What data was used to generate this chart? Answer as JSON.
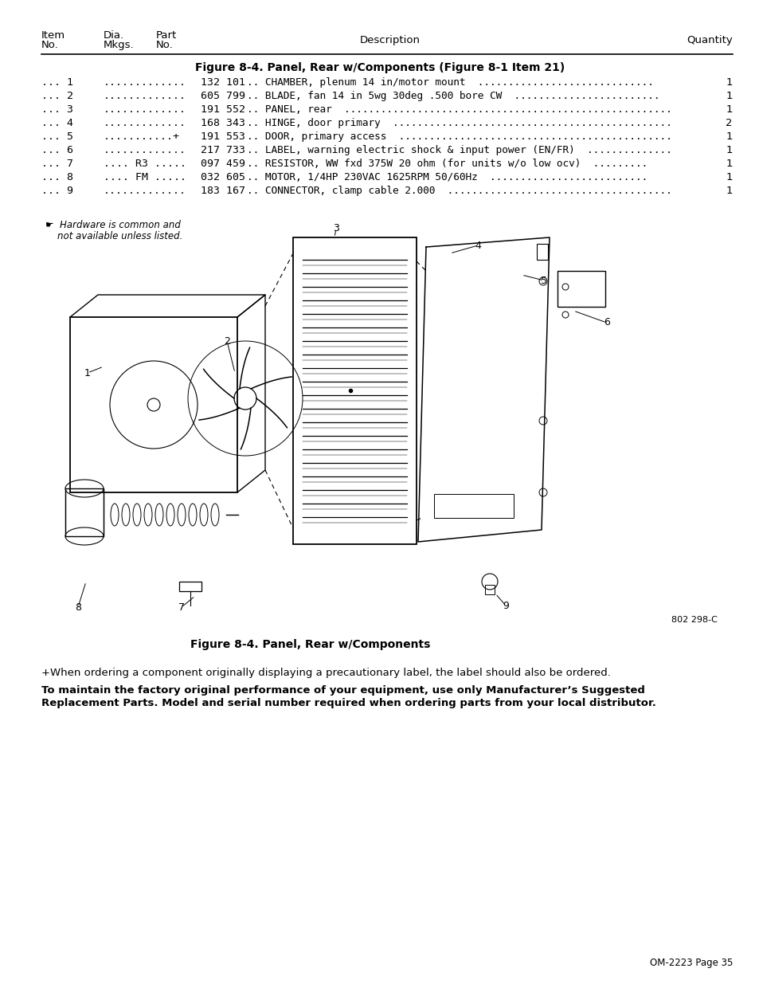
{
  "title_bold": "Figure 8-4. Panel, Rear w/Components (Figure 8-1 Item 21)",
  "figure_caption": "Figure 8-4. Panel, Rear w/Components",
  "figure_code": "802 298-C",
  "page_ref": "OM-2223 Page 35",
  "plus_note": "+When ordering a component originally displaying a precautionary label, the label should also be ordered.",
  "bold_line1": "To maintain the factory original performance of your equipment, use only Manufacturer’s Suggested",
  "bold_line2": "Replacement Parts. Model and serial number required when ordering parts from your local distributor.",
  "rows": [
    {
      "item": "... 1",
      "dia": ".............",
      "part": "132 101",
      "desc": ".. CHAMBER, plenum 14 in/motor mount  .............................",
      "qty": "1"
    },
    {
      "item": "... 2",
      "dia": ".............",
      "part": "605 799",
      "desc": ".. BLADE, fan 14 in 5wg 30deg .500 bore CW  ........................",
      "qty": "1"
    },
    {
      "item": "... 3",
      "dia": ".............",
      "part": "191 552",
      "desc": ".. PANEL, rear  ......................................................",
      "qty": "1"
    },
    {
      "item": "... 4",
      "dia": ".............",
      "part": "168 343",
      "desc": ".. HINGE, door primary  ..............................................",
      "qty": "2"
    },
    {
      "item": "... 5",
      "dia": "...........+",
      "part": "191 553",
      "desc": ".. DOOR, primary access  .............................................",
      "qty": "1"
    },
    {
      "item": "... 6",
      "dia": ".............",
      "part": "217 733",
      "desc": ".. LABEL, warning electric shock & input power (EN/FR)  ..............",
      "qty": "1"
    },
    {
      "item": "... 7",
      "dia": ".... R3 .....",
      "part": "097 459",
      "desc": ".. RESISTOR, WW fxd 375W 20 ohm (for units w/o low ocv)  .........",
      "qty": "1"
    },
    {
      "item": "... 8",
      "dia": ".... FM .....",
      "part": "032 605",
      "desc": ".. MOTOR, 1/4HP 230VAC 1625RPM 50/60Hz  ..........................",
      "qty": "1"
    },
    {
      "item": "... 9",
      "dia": ".............",
      "part": "183 167",
      "desc": ".. CONNECTOR, clamp cable 2.000  .....................................",
      "qty": "1"
    }
  ],
  "bg_color": "#ffffff",
  "text_color": "#000000",
  "font_size": 9.5
}
